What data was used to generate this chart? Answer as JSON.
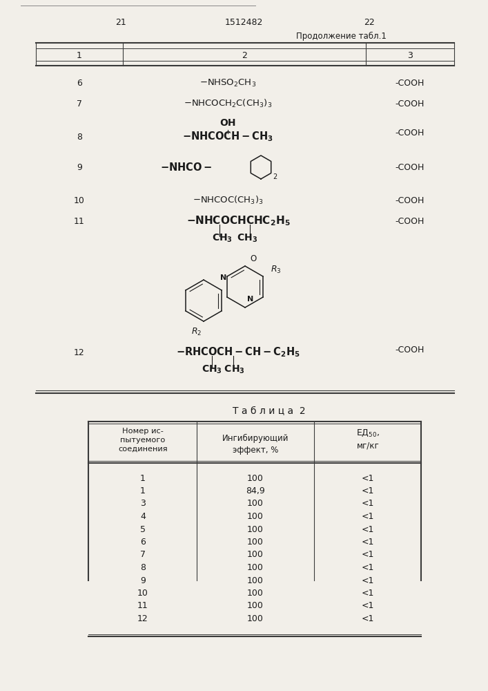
{
  "page_left": "21",
  "page_center": "1512482",
  "page_right": "22",
  "continuation": "Продолжение табл.1",
  "col1_header": "1",
  "col2_header": "2",
  "col3_header": "3",
  "row6_r2": "-NHSO₂CH₃",
  "row7_r2": "-NHCOCH₂C(CH₃)₃",
  "row8_oh": "OH",
  "row8_r2": "-NHCOCH–CH₃",
  "row9_r2a": "-NHCO",
  "row10_r2": "-NHCOC(CH₃)₃",
  "row11_r2": "-NHCOCHCHC₂H₅",
  "row11_sub": "CH₃  CH₃",
  "row12_r2": "-RHCOCH–CH–C₂H₅",
  "row12_sub": "CH₃CH₃",
  "cooh": "-COOH",
  "struct_N1": "N",
  "struct_N2": "N",
  "struct_O": "O",
  "struct_R2": "R₂",
  "struct_R3": "R₃",
  "table2_title": "Т а б л и ц а  2",
  "t2_h1": "Номер ис-\nпытуемого\nсоединения",
  "t2_h2": "Ингибирующий\nэффект, %",
  "t2_h3a": "ЕД",
  "t2_h3b": "50",
  "t2_h3c": ",",
  "t2_h3d": "мг/кг",
  "table2_rows": [
    [
      "1",
      "100",
      "<1"
    ],
    [
      "1",
      "84,9",
      "<1"
    ],
    [
      "3",
      "100",
      "<1"
    ],
    [
      "4",
      "100",
      "<1"
    ],
    [
      "5",
      "100",
      "<1"
    ],
    [
      "6",
      "100",
      "<1"
    ],
    [
      "7",
      "100",
      "<1"
    ],
    [
      "8",
      "100",
      "<1"
    ],
    [
      "9",
      "100",
      "<1"
    ],
    [
      "10",
      "100",
      "<1"
    ],
    [
      "11",
      "100",
      "<1"
    ],
    [
      "12",
      "100",
      "<1"
    ]
  ],
  "bg_color": "#f2efe9",
  "line_color": "#3a3a3a",
  "text_color": "#1a1a1a"
}
